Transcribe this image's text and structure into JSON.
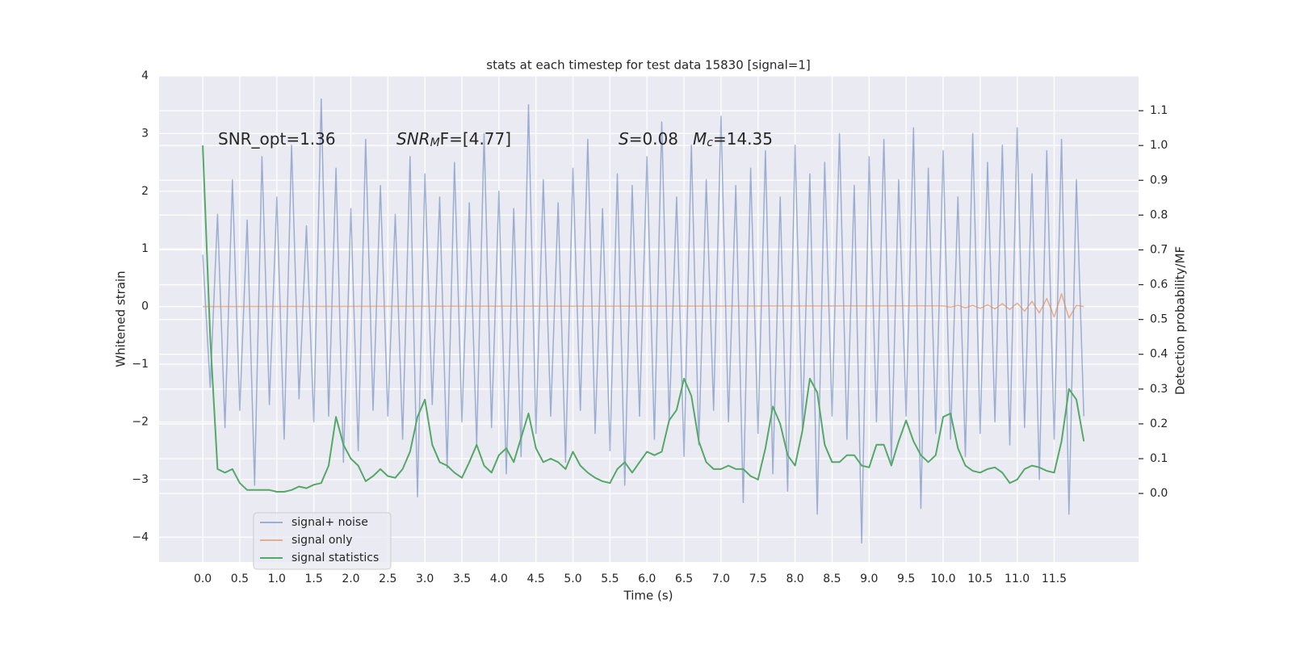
{
  "chart_data": {
    "type": "line",
    "title": "stats at each timestep for test data 15830 [signal=1]",
    "x_label": "Time (s)",
    "y_label": "Whitened strain",
    "y2_label": "Detection probability/MF",
    "annotations": [
      {
        "rest": "SNR_opt=1.36"
      },
      {
        "italic": "SNR",
        "sub": "M",
        "rest": "F=[4.77]"
      },
      {
        "italic": "S",
        "rest": "=0.08"
      },
      {
        "italic": "M",
        "sub": "c",
        "rest": "=14.35"
      }
    ],
    "xlim": [
      -0.59,
      12.64
    ],
    "ylim": [
      -4.43,
      4.0
    ],
    "y2lim": [
      -0.197,
      1.2
    ],
    "xticks": [
      {
        "value": 0,
        "label": "0.0"
      },
      0.5,
      {
        "value": 1,
        "label": "1.0"
      },
      1.5,
      {
        "value": 2,
        "label": "2.0"
      },
      2.5,
      {
        "value": 3,
        "label": "3.0"
      },
      3.5,
      {
        "value": 4,
        "label": "4.0"
      },
      4.5,
      {
        "value": 5,
        "label": "5.0"
      },
      5.5,
      {
        "value": 6,
        "label": "6.0"
      },
      6.5,
      {
        "value": 7,
        "label": "7.0"
      },
      7.5,
      {
        "value": 8,
        "label": "8.0"
      },
      8.5,
      {
        "value": 9,
        "label": "9.0"
      },
      9.5,
      {
        "value": 10,
        "label": "10.0"
      },
      10.5,
      {
        "value": 11,
        "label": "11.0"
      },
      11.5
    ],
    "yticks": [
      {
        "value": -4,
        "label": "−4"
      },
      {
        "value": -3,
        "label": "−3"
      },
      {
        "value": -2,
        "label": "−2"
      },
      {
        "value": -1,
        "label": "−1"
      },
      0,
      1,
      2,
      3,
      4
    ],
    "y2ticks": [
      {
        "value": 0,
        "label": "0.0"
      },
      0.1,
      0.2,
      0.3,
      0.4,
      0.5,
      0.6,
      0.7,
      0.8,
      0.9,
      {
        "value": 1,
        "label": "1.0"
      },
      1.1
    ],
    "grid": true,
    "legend": "lower left",
    "x": [
      0.0,
      0.1,
      0.2,
      0.3,
      0.4,
      0.5,
      0.6,
      0.7,
      0.8,
      0.9,
      1.0,
      1.1,
      1.2,
      1.3,
      1.4,
      1.5,
      1.6,
      1.7,
      1.8,
      1.9,
      2.0,
      2.1,
      2.2,
      2.3,
      2.4,
      2.5,
      2.6,
      2.7,
      2.8,
      2.9,
      3.0,
      3.1,
      3.2,
      3.3,
      3.4,
      3.5,
      3.6,
      3.7,
      3.8,
      3.9,
      4.0,
      4.1,
      4.2,
      4.3,
      4.4,
      4.5,
      4.6,
      4.7,
      4.8,
      4.9,
      5.0,
      5.1,
      5.2,
      5.3,
      5.4,
      5.5,
      5.6,
      5.7,
      5.8,
      5.9,
      6.0,
      6.1,
      6.2,
      6.3,
      6.4,
      6.5,
      6.6,
      6.7,
      6.8,
      6.9,
      7.0,
      7.1,
      7.2,
      7.3,
      7.4,
      7.5,
      7.6,
      7.7,
      7.8,
      7.9,
      8.0,
      8.1,
      8.2,
      8.3,
      8.4,
      8.5,
      8.6,
      8.7,
      8.8,
      8.9,
      9.0,
      9.1,
      9.2,
      9.3,
      9.4,
      9.5,
      9.6,
      9.7,
      9.8,
      9.9,
      10.0,
      10.1,
      10.2,
      10.3,
      10.4,
      10.5,
      10.6,
      10.7,
      10.8,
      10.9,
      11.0,
      11.1,
      11.2,
      11.3,
      11.4,
      11.5,
      11.6,
      11.7,
      11.8,
      11.9
    ],
    "series": [
      {
        "name": "signal+ noise",
        "color": "#4c72b0",
        "alpha": 0.5,
        "values": [
          0.9,
          -1.4,
          1.6,
          -2.1,
          2.2,
          -1.8,
          1.5,
          -3.1,
          2.6,
          -1.7,
          1.9,
          -2.3,
          2.8,
          -1.6,
          1.4,
          -2.0,
          3.6,
          -1.9,
          2.4,
          -2.7,
          1.7,
          -2.5,
          2.9,
          -1.8,
          2.1,
          -1.9,
          1.6,
          -2.3,
          2.6,
          -3.3,
          2.3,
          -1.7,
          1.9,
          -2.8,
          2.5,
          -2.0,
          1.8,
          -2.4,
          3.0,
          -2.1,
          2.0,
          -2.9,
          1.7,
          -2.6,
          3.5,
          -2.2,
          2.2,
          -1.9,
          1.8,
          -2.7,
          2.4,
          -1.8,
          2.9,
          -2.2,
          1.7,
          -2.5,
          2.3,
          -3.1,
          2.1,
          -1.9,
          2.6,
          -2.3,
          3.2,
          -2.0,
          1.9,
          -2.6,
          2.8,
          -2.4,
          2.2,
          -1.8,
          3.3,
          -2.0,
          2.1,
          -3.4,
          2.4,
          -2.2,
          2.7,
          -2.9,
          1.9,
          -3.2,
          2.8,
          -2.1,
          2.3,
          -3.6,
          2.5,
          -1.9,
          3.0,
          -2.3,
          2.1,
          -4.1,
          2.6,
          -2.0,
          2.9,
          -2.7,
          2.2,
          -1.9,
          3.1,
          -3.5,
          2.4,
          -2.2,
          2.7,
          -2.3,
          1.9,
          -2.6,
          3.0,
          -2.2,
          2.5,
          -2.0,
          2.8,
          -2.4,
          3.1,
          -2.1,
          2.3,
          -3.0,
          2.7,
          -2.3,
          2.9,
          -3.6,
          2.2,
          -1.9
        ]
      },
      {
        "name": "signal only",
        "color": "#dd8452",
        "alpha": 0.6,
        "x": [
          0.0,
          10.0,
          10.1,
          10.2,
          10.3,
          10.4,
          10.5,
          10.6,
          10.7,
          10.8,
          10.9,
          11.0,
          11.1,
          11.2,
          11.3,
          11.4,
          11.5,
          11.6,
          11.7,
          11.8,
          11.9
        ],
        "values": [
          0,
          0.01,
          -0.01,
          0.02,
          -0.02,
          0.02,
          -0.03,
          0.03,
          -0.04,
          0.05,
          -0.05,
          0.06,
          -0.08,
          0.09,
          -0.11,
          0.14,
          -0.18,
          0.22,
          -0.2,
          0.02,
          0
        ]
      },
      {
        "name": "signal statistics",
        "color": "#55a868",
        "alpha": 1,
        "axis": "y2",
        "values": [
          1.0,
          0.45,
          0.07,
          0.06,
          0.07,
          0.03,
          0.01,
          0.01,
          0.01,
          0.01,
          0.005,
          0.005,
          0.01,
          0.02,
          0.015,
          0.025,
          0.03,
          0.08,
          0.22,
          0.14,
          0.1,
          0.08,
          0.035,
          0.05,
          0.07,
          0.05,
          0.045,
          0.07,
          0.12,
          0.22,
          0.27,
          0.14,
          0.09,
          0.08,
          0.06,
          0.045,
          0.09,
          0.14,
          0.08,
          0.06,
          0.11,
          0.13,
          0.09,
          0.16,
          0.23,
          0.13,
          0.09,
          0.1,
          0.09,
          0.07,
          0.12,
          0.08,
          0.06,
          0.045,
          0.035,
          0.03,
          0.07,
          0.09,
          0.06,
          0.09,
          0.12,
          0.11,
          0.12,
          0.21,
          0.24,
          0.33,
          0.28,
          0.15,
          0.09,
          0.07,
          0.07,
          0.08,
          0.07,
          0.07,
          0.05,
          0.04,
          0.13,
          0.25,
          0.2,
          0.11,
          0.08,
          0.18,
          0.33,
          0.29,
          0.14,
          0.09,
          0.09,
          0.11,
          0.11,
          0.08,
          0.075,
          0.14,
          0.14,
          0.08,
          0.15,
          0.21,
          0.15,
          0.11,
          0.09,
          0.11,
          0.22,
          0.23,
          0.13,
          0.08,
          0.065,
          0.06,
          0.07,
          0.075,
          0.06,
          0.03,
          0.04,
          0.07,
          0.08,
          0.075,
          0.065,
          0.06,
          0.15,
          0.3,
          0.27,
          0.15
        ]
      }
    ]
  }
}
